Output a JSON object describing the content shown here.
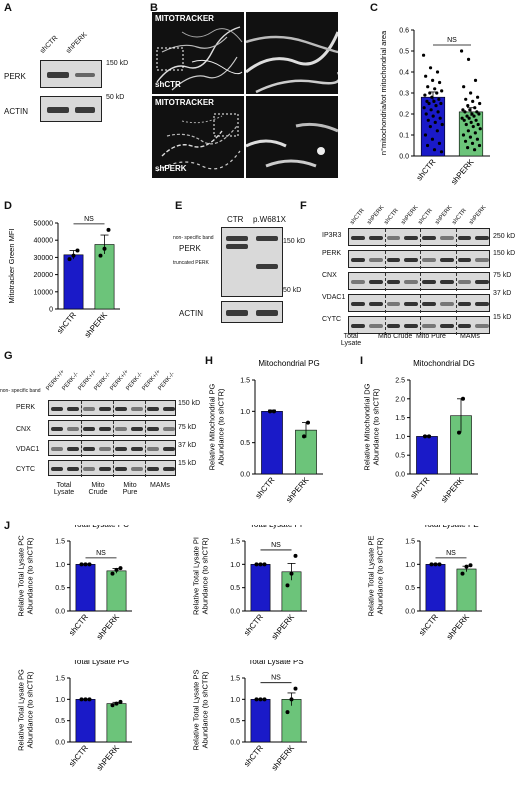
{
  "panel_labels": {
    "A": "A",
    "B": "B",
    "C": "C",
    "D": "D",
    "E": "E",
    "F": "F",
    "G": "G",
    "H": "H",
    "I": "I",
    "J": "J"
  },
  "blotA": {
    "lanes": [
      "shCTR",
      "shPERK"
    ],
    "rows": [
      "PERK",
      "ACTIN"
    ],
    "markers": [
      "150 kD",
      "50 kD"
    ]
  },
  "panelB": {
    "labels": [
      "MITOTRACKER",
      "shCTR",
      "MITOTRACKER",
      "shPERK"
    ]
  },
  "blotE": {
    "lanes": [
      "CTR",
      "p.W681X"
    ],
    "rows": [
      "PERK",
      "ACTIN"
    ],
    "notes": [
      "non- specific band",
      "truncated PERK"
    ],
    "markers": [
      "150 kD",
      "50 kD"
    ]
  },
  "blotF": {
    "lanes": [
      "shCTR",
      "shPERK",
      "shCTR",
      "shPERK",
      "shCTR",
      "shPERK",
      "shCTR",
      "shPERK"
    ],
    "rows": [
      "IP3R3",
      "PERK",
      "CNX",
      "VDAC1",
      "CYTC"
    ],
    "markers": [
      "250 kD",
      "150 kD",
      "75 kD",
      "37 kD",
      "15 kD"
    ],
    "fractions": [
      "Total Lysate",
      "Mito Crude",
      "Mito Pure",
      "MAMs"
    ]
  },
  "blotG": {
    "lanes": [
      "PERK+/+",
      "PERK-/-",
      "PERK+/+",
      "PERK-/-",
      "PERK+/+",
      "PERK-/-",
      "PERK+/+",
      "PERK-/-"
    ],
    "rows": [
      "PERK",
      "CNX",
      "VDAC1",
      "CYTC"
    ],
    "markers": [
      "150 kD",
      "75 kD",
      "37 kD",
      "15 kD"
    ],
    "fractions": [
      "Total Lysate",
      "Mito Crude",
      "Mito Pure",
      "MAMs"
    ],
    "note": "non- specific band"
  },
  "colors": {
    "shCTR": "#1a1ac8",
    "shPERK": "#6cc47a"
  },
  "chart_data": [
    {
      "id": "C",
      "type": "bar",
      "categories": [
        "shCTR",
        "shPERK"
      ],
      "values": [
        0.28,
        0.21
      ],
      "errors": [
        0.025,
        0.02
      ],
      "ylabel": "n°mitochondria/tot mitochondrial area",
      "ylim": [
        0,
        0.6
      ],
      "yticks": [
        "0.0",
        "0.1",
        "0.2",
        "0.3",
        "0.4",
        "0.5",
        "0.6"
      ],
      "sig": "NS",
      "points": [
        [
          0.48,
          0.42,
          0.4,
          0.38,
          0.36,
          0.35,
          0.33,
          0.32,
          0.31,
          0.3,
          0.3,
          0.29,
          0.28,
          0.27,
          0.26,
          0.26,
          0.25,
          0.25,
          0.24,
          0.23,
          0.22,
          0.21,
          0.2,
          0.19,
          0.18,
          0.17,
          0.16,
          0.15,
          0.14,
          0.12,
          0.1,
          0.08,
          0.06,
          0.05,
          0.03,
          0.02
        ],
        [
          0.5,
          0.46,
          0.36,
          0.33,
          0.3,
          0.28,
          0.27,
          0.26,
          0.25,
          0.24,
          0.23,
          0.22,
          0.22,
          0.21,
          0.21,
          0.2,
          0.2,
          0.19,
          0.19,
          0.18,
          0.18,
          0.17,
          0.17,
          0.16,
          0.15,
          0.15,
          0.14,
          0.13,
          0.12,
          0.11,
          0.1,
          0.09,
          0.08,
          0.07,
          0.06,
          0.05,
          0.04,
          0.03
        ]
      ]
    },
    {
      "id": "D",
      "type": "bar",
      "categories": [
        "shCTR",
        "shPERK"
      ],
      "values": [
        31500,
        37500
      ],
      "errors": [
        2500,
        5500
      ],
      "ylabel": "Mitotracker Green MFI",
      "ylim": [
        0,
        50000
      ],
      "yticks": [
        "0",
        "10000",
        "20000",
        "30000",
        "40000",
        "50000"
      ],
      "sig": "NS",
      "points": [
        [
          29000,
          31000,
          34000
        ],
        [
          31000,
          35000,
          46000
        ]
      ]
    },
    {
      "id": "H",
      "type": "bar",
      "title": "Mitochondrial PG",
      "categories": [
        "shCTR",
        "shPERK"
      ],
      "values": [
        1.0,
        0.7
      ],
      "errors": [
        0.02,
        0.12
      ],
      "ylabel": "Relative Mitochondrial PG Abundance (to shCTR)",
      "ylim": [
        0,
        1.5
      ],
      "yticks": [
        "0.0",
        "0.5",
        "1.0",
        "1.5"
      ],
      "points": [
        [
          1.0,
          1.0
        ],
        [
          0.6,
          0.82
        ]
      ]
    },
    {
      "id": "I",
      "type": "bar",
      "title": "Mitochondrial DG",
      "categories": [
        "shCTR",
        "shPERK"
      ],
      "values": [
        1.0,
        1.55
      ],
      "errors": [
        0.02,
        0.45
      ],
      "ylabel": "Relative Mitochondrial DG Abundance (to shCTR)",
      "ylim": [
        0,
        2.5
      ],
      "yticks": [
        "0.0",
        "0.5",
        "1.0",
        "1.5",
        "2.0",
        "2.5"
      ],
      "points": [
        [
          1.0,
          1.0
        ],
        [
          1.1,
          2.0
        ]
      ]
    },
    {
      "id": "J1",
      "type": "bar",
      "title": "Total Lysate PC",
      "categories": [
        "shCTR",
        "shPERK"
      ],
      "values": [
        1.0,
        0.86
      ],
      "errors": [
        0.01,
        0.05
      ],
      "ylabel": "Relative Total Lysate PC Abundance (to shCTR)",
      "ylim": [
        0,
        1.5
      ],
      "yticks": [
        "0.0",
        "0.5",
        "1.0",
        "1.5"
      ],
      "sig": "NS",
      "points": [
        [
          1.0,
          1.0,
          1.0
        ],
        [
          0.8,
          0.88,
          0.92
        ]
      ]
    },
    {
      "id": "J2",
      "type": "bar",
      "title": "Total Lysate PI",
      "categories": [
        "shCTR",
        "shPERK"
      ],
      "values": [
        1.0,
        0.84
      ],
      "errors": [
        0.01,
        0.18
      ],
      "ylabel": "Relative Total Lysate PI Abundance (to shCTR)",
      "ylim": [
        0,
        1.5
      ],
      "yticks": [
        "0.0",
        "0.5",
        "1.0",
        "1.5"
      ],
      "sig": "NS",
      "points": [
        [
          1.0,
          1.0,
          1.0
        ],
        [
          0.55,
          0.8,
          1.18
        ]
      ]
    },
    {
      "id": "J3",
      "type": "bar",
      "title": "Total Lysate PE",
      "categories": [
        "shCTR",
        "shPERK"
      ],
      "values": [
        1.0,
        0.9
      ],
      "errors": [
        0.01,
        0.06
      ],
      "ylabel": "Relative Total Lysate PE Abundance (to shCTR)",
      "ylim": [
        0,
        1.5
      ],
      "yticks": [
        "0.0",
        "0.5",
        "1.0",
        "1.5"
      ],
      "sig": "NS",
      "points": [
        [
          1.0,
          1.0,
          1.0
        ],
        [
          0.8,
          0.95,
          0.98
        ]
      ]
    },
    {
      "id": "J4",
      "type": "bar",
      "title": "Total Lysate PG",
      "categories": [
        "shCTR",
        "shPERK"
      ],
      "values": [
        1.0,
        0.9
      ],
      "errors": [
        0.01,
        0.03
      ],
      "ylabel": "Relative Total Lysate PG Abundance (to shCTR)",
      "ylim": [
        0,
        1.5
      ],
      "yticks": [
        "0.0",
        "0.5",
        "1.0",
        "1.5"
      ],
      "points": [
        [
          1.0,
          1.0,
          1.0
        ],
        [
          0.86,
          0.9,
          0.94
        ]
      ]
    },
    {
      "id": "J5",
      "type": "bar",
      "title": "Total Lysate PS",
      "categories": [
        "shCTR",
        "shPERK"
      ],
      "values": [
        1.0,
        1.0
      ],
      "errors": [
        0.01,
        0.15
      ],
      "ylabel": "Relative Total Lysate PS Abundance (to shCTR)",
      "ylim": [
        0,
        1.5
      ],
      "yticks": [
        "0.0",
        "0.5",
        "1.0",
        "1.5"
      ],
      "sig": "NS",
      "points": [
        [
          1.0,
          1.0,
          1.0
        ],
        [
          0.7,
          1.0,
          1.25
        ]
      ]
    }
  ]
}
